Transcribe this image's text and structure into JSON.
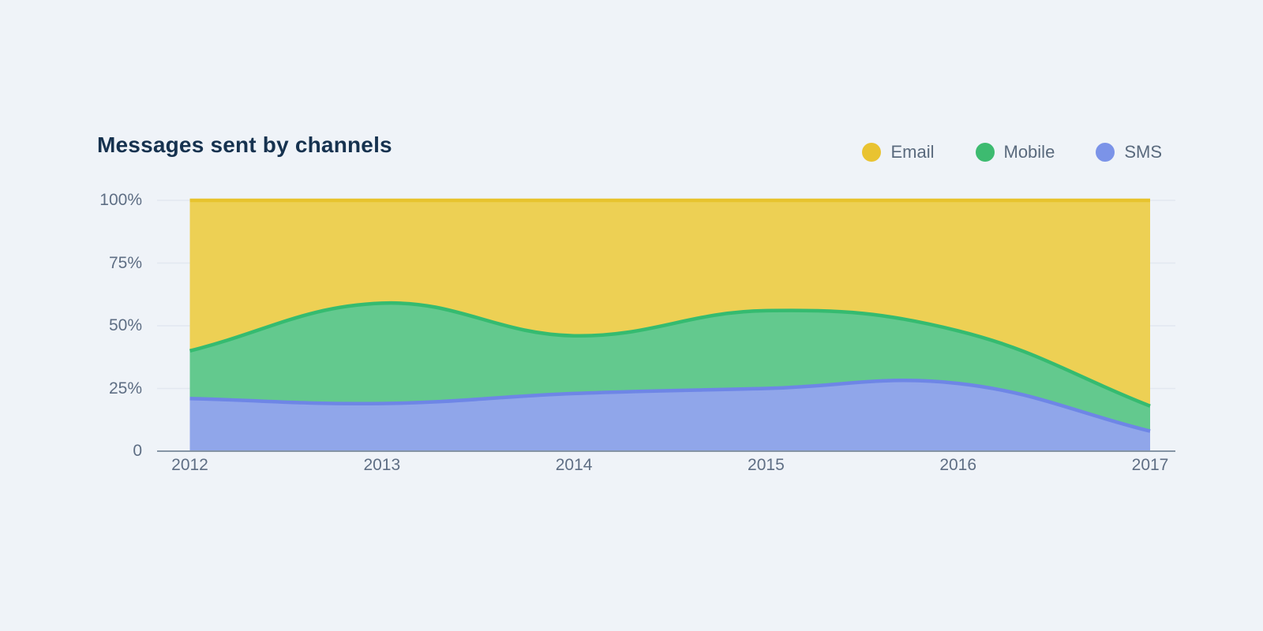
{
  "title": "Messages sent by channels",
  "legend": [
    {
      "label": "Email",
      "color": "#e9c331"
    },
    {
      "label": "Mobile",
      "color": "#3dbb70"
    },
    {
      "label": "SMS",
      "color": "#7b93e8"
    }
  ],
  "chart_data": {
    "type": "area",
    "stacked": true,
    "percent": true,
    "title": "Messages sent by channels",
    "x": [
      2012,
      2013,
      2014,
      2015,
      2016,
      2017
    ],
    "x_ticks": [
      "2012",
      "2013",
      "2014",
      "2015",
      "2016",
      "2017"
    ],
    "y_ticks": [
      "0",
      "25%",
      "50%",
      "75%",
      "100%"
    ],
    "y_tick_values": [
      0,
      25,
      50,
      75,
      100
    ],
    "ylim": [
      0,
      100
    ],
    "xlabel": "",
    "ylabel": "",
    "grid": true,
    "legend_position": "top-right",
    "series": [
      {
        "name": "SMS",
        "values": [
          21,
          19,
          23,
          25,
          27,
          8
        ],
        "fill": "#90a6ea",
        "stroke": "#6e86e6"
      },
      {
        "name": "Mobile",
        "values": [
          19,
          40,
          23,
          31,
          21,
          10
        ],
        "fill": "#63c98e",
        "stroke": "#35bb70"
      },
      {
        "name": "Email",
        "values": [
          60,
          41,
          54,
          44,
          52,
          82
        ],
        "fill": "#edd054",
        "stroke": "#e7c32d"
      }
    ]
  },
  "colors": {
    "background": "#eff3f8",
    "grid": "#e2e8f0",
    "axis": "#8595a5",
    "title_text": "#16324f",
    "tick_text": "#5e6e84",
    "legend_text": "#5a6a7d"
  }
}
